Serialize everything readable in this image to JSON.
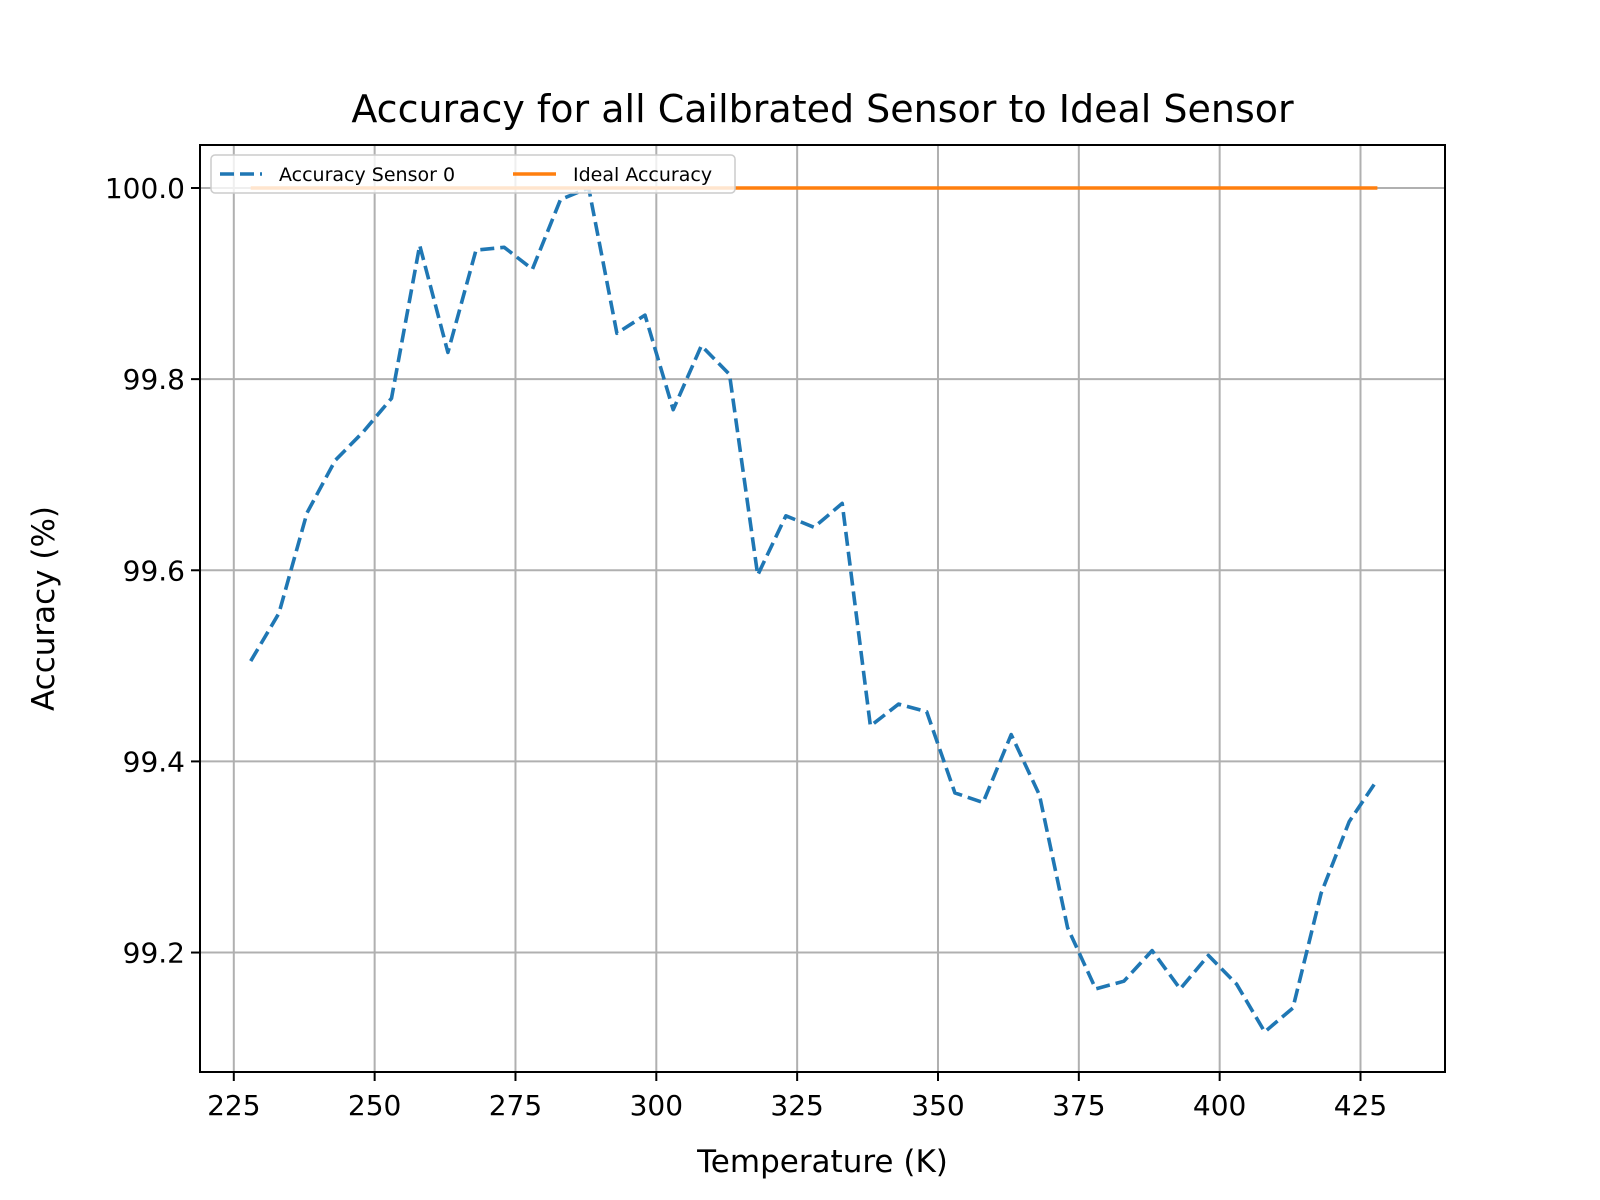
{
  "chart_data": {
    "type": "line",
    "title": "Accuracy for all Cailbrated Sensor to Ideal Sensor",
    "xlabel": "Temperature (K)",
    "ylabel": "Accuracy (%)",
    "xlim": [
      219,
      440
    ],
    "ylim": [
      99.075,
      100.045
    ],
    "xticks": [
      225,
      250,
      275,
      300,
      325,
      350,
      375,
      400,
      425
    ],
    "yticks": [
      99.2,
      99.4,
      99.6,
      99.8,
      100.0
    ],
    "xtick_labels": [
      "225",
      "250",
      "275",
      "300",
      "325",
      "350",
      "375",
      "400",
      "425"
    ],
    "ytick_labels": [
      "99.2",
      "99.4",
      "99.6",
      "99.8",
      "100.0"
    ],
    "grid": true,
    "legend_position": "top-left",
    "series": [
      {
        "name": "Accuracy Sensor 0",
        "color": "#1f77b4",
        "style": "dashed",
        "x": [
          228,
          233,
          238,
          243,
          248,
          253,
          258,
          263,
          268,
          273,
          278,
          283,
          288,
          293,
          298,
          303,
          308,
          313,
          318,
          323,
          328,
          333,
          338,
          343,
          348,
          353,
          358,
          363,
          368,
          373,
          378,
          383,
          388,
          393,
          398,
          403,
          408,
          413,
          418,
          423,
          428
        ],
        "y": [
          99.505,
          99.555,
          99.66,
          99.715,
          99.745,
          99.78,
          99.94,
          99.828,
          99.935,
          99.938,
          99.915,
          99.988,
          100.0,
          99.848,
          99.867,
          99.768,
          99.835,
          99.805,
          99.595,
          99.657,
          99.645,
          99.67,
          99.437,
          99.46,
          99.452,
          99.367,
          99.357,
          99.428,
          99.365,
          99.226,
          99.162,
          99.17,
          99.202,
          99.162,
          99.197,
          99.167,
          99.117,
          99.142,
          99.262,
          99.337,
          99.381
        ]
      },
      {
        "name": "Ideal Accuracy",
        "color": "#ff7f0e",
        "style": "solid",
        "x": [
          228,
          428
        ],
        "y": [
          100.0,
          100.0
        ]
      }
    ]
  }
}
